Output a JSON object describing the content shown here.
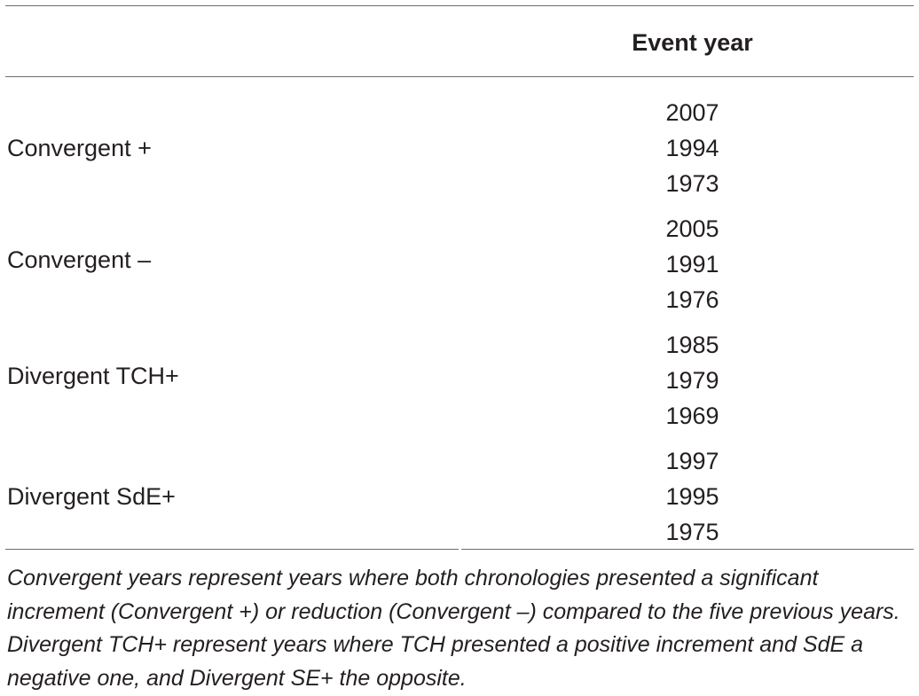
{
  "table": {
    "header": {
      "row_label": "",
      "event_year": "Event year"
    },
    "groups": [
      {
        "label": "Convergent +",
        "years": [
          "2007",
          "1994",
          "1973"
        ]
      },
      {
        "label": "Convergent –",
        "years": [
          "2005",
          "1991",
          "1976"
        ]
      },
      {
        "label": "Divergent TCH+",
        "years": [
          "1985",
          "1979",
          "1969"
        ]
      },
      {
        "label": "Divergent SdE+",
        "years": [
          "1997",
          "1995",
          "1975"
        ]
      }
    ],
    "footnote": "Convergent years represent years where both chronologies presented a significant increment (Convergent +) or reduction (Convergent –) compared to the five previous years. Divergent TCH+ represent years where TCH presented a positive increment and SdE a negative one, and Divergent SE+ the opposite."
  }
}
